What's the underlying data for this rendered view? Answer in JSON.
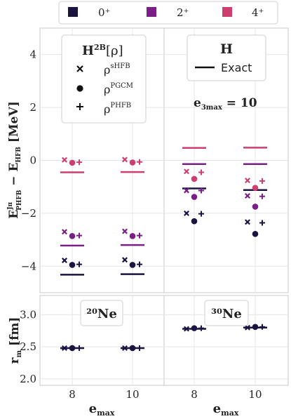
{
  "legend_top": {
    "items": [
      {
        "label": "0⁺",
        "color": "#1b1340"
      },
      {
        "label": "2⁺",
        "color": "#7a1f86"
      },
      {
        "label": "4⁺",
        "color": "#cc3f6e"
      }
    ]
  },
  "colors": {
    "j0": "#1b1340",
    "j2": "#7a1f86",
    "j4": "#cc3f6e",
    "frame": "#c8c8c8",
    "grid": "#e4e4e4"
  },
  "method_legend": {
    "title_main": "H",
    "title_sup": "2B",
    "title_arg": "[ρ]",
    "items": [
      {
        "marker": "x",
        "label_base": "ρ",
        "label_sup": "sHFB"
      },
      {
        "marker": "o",
        "label_base": "ρ",
        "label_sup": "PGCM"
      },
      {
        "marker": "+",
        "label_base": "ρ",
        "label_sup": "PHFB"
      }
    ]
  },
  "exact_legend": {
    "title": "H",
    "label": "Exact"
  },
  "e3max_label": {
    "base": "e",
    "sub": "3max",
    "rest": " = 10"
  },
  "chart_data": [
    {
      "type": "scatter",
      "panel": "energy-20Ne",
      "ylabel_base": "E",
      "ylabel_sub": "PHFB",
      "ylabel_sup": "Jπ",
      "ylabel_rest": " − E",
      "ylabel_sub2": "HFB",
      "ylabel_unit": " [MeV]",
      "ylim": [
        -5.0,
        5.0
      ],
      "yticks": [
        -4,
        -2,
        0,
        2,
        4
      ],
      "categories": [
        "8",
        "10"
      ],
      "series": [
        {
          "name": "0⁺",
          "exact": [
            -4.32,
            -4.3
          ],
          "sHFB": [
            -3.78,
            -3.76
          ],
          "PGCM": [
            -3.95,
            -3.95
          ],
          "PHFB": [
            -3.93,
            -3.93
          ]
        },
        {
          "name": "2⁺",
          "exact": [
            -3.22,
            -3.2
          ],
          "sHFB": [
            -2.7,
            -2.68
          ],
          "PGCM": [
            -2.86,
            -2.86
          ],
          "PHFB": [
            -2.84,
            -2.84
          ]
        },
        {
          "name": "4⁺",
          "exact": [
            -0.45,
            -0.44
          ],
          "sHFB": [
            0.02,
            0.03
          ],
          "PGCM": [
            -0.09,
            -0.08
          ],
          "PHFB": [
            -0.07,
            -0.06
          ]
        }
      ]
    },
    {
      "type": "scatter",
      "panel": "energy-30Ne",
      "ylim": [
        -5.0,
        5.0
      ],
      "categories": [
        "8",
        "10"
      ],
      "series": [
        {
          "name": "0⁺",
          "exact": [
            -1.06,
            -1.12
          ],
          "sHFB": [
            -2.0,
            -2.33
          ],
          "PGCM": [
            -2.3,
            -2.78
          ],
          "PHFB": [
            -2.02,
            -2.36
          ]
        },
        {
          "name": "2⁺",
          "exact": [
            -0.14,
            -0.14
          ],
          "sHFB": [
            -1.14,
            -1.34
          ],
          "PGCM": [
            -1.38,
            -1.75
          ],
          "PHFB": [
            -1.14,
            -1.36
          ]
        },
        {
          "name": "4⁺",
          "exact": [
            0.47,
            0.48
          ],
          "sHFB": [
            -0.42,
            -0.76
          ],
          "PGCM": [
            -0.7,
            -1.04
          ],
          "PHFB": [
            -0.45,
            -0.78
          ]
        }
      ]
    },
    {
      "type": "scatter",
      "panel": "radius-20Ne",
      "label": "²⁰Ne",
      "ylabel_base": "r",
      "ylabel_sub": "m",
      "ylabel_unit": " [fm]",
      "ylim": [
        1.9,
        3.3
      ],
      "yticks": [
        2.0,
        2.5,
        3.0
      ],
      "ytick_labels": [
        "2.0",
        "2.5",
        "3.0"
      ],
      "xlabel": "e",
      "xlabel_sub": "max",
      "categories": [
        "8",
        "10"
      ],
      "series": [
        {
          "name": "0⁺",
          "exact": [
            2.48,
            2.48
          ],
          "sHFB": [
            2.48,
            2.48
          ],
          "PGCM": [
            2.48,
            2.48
          ],
          "PHFB": [
            2.48,
            2.48
          ]
        }
      ]
    },
    {
      "type": "scatter",
      "panel": "radius-30Ne",
      "label": "³⁰Ne",
      "ylim": [
        1.9,
        3.3
      ],
      "xlabel": "e",
      "xlabel_sub": "max",
      "categories": [
        "8",
        "10"
      ],
      "series": [
        {
          "name": "0⁺",
          "exact": [
            2.78,
            2.8
          ],
          "sHFB": [
            2.78,
            2.8
          ],
          "PGCM": [
            2.79,
            2.81
          ],
          "PHFB": [
            2.79,
            2.81
          ]
        }
      ]
    }
  ]
}
